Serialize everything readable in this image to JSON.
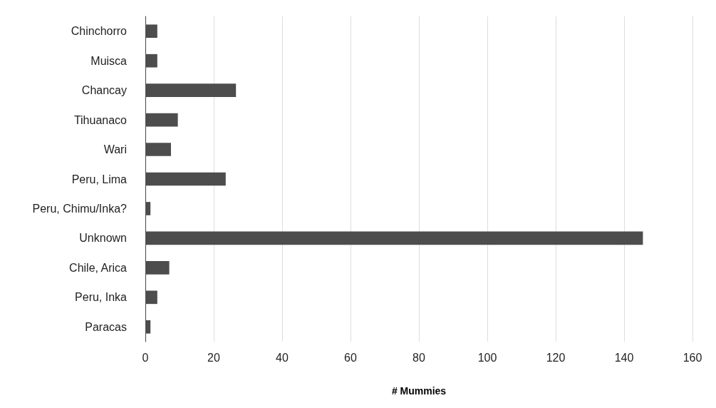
{
  "chart_data": {
    "type": "bar",
    "orientation": "horizontal",
    "xlabel": "# Mummies",
    "categories": [
      "Chinchorro",
      "Muisca",
      "Chancay",
      "Tihuanaco",
      "Wari",
      "Peru, Lima",
      "Peru, Chimu/Inka?",
      "Unknown",
      "Chile, Arica",
      "Peru, Inka",
      "Paracas"
    ],
    "values": [
      3.5,
      3.5,
      26.5,
      9.5,
      7.5,
      23.5,
      1.5,
      145.5,
      7,
      3.5,
      1.5
    ],
    "color": "#4d4d4d",
    "xlim": [
      0,
      160
    ],
    "xticks": [
      0,
      20,
      40,
      60,
      80,
      100,
      120,
      140,
      160
    ],
    "grid": "x"
  }
}
